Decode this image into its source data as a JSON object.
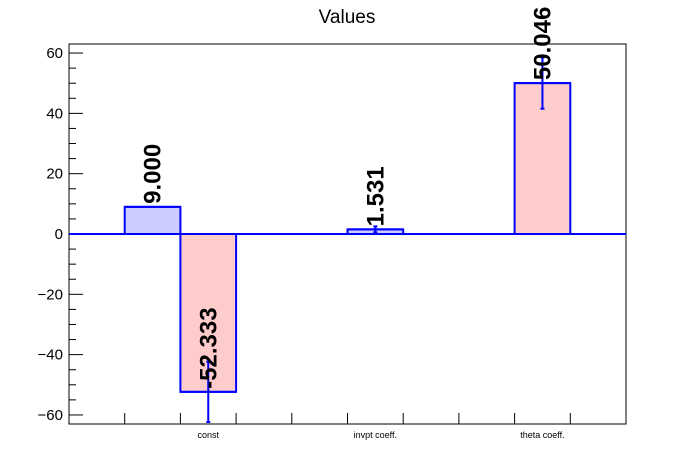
{
  "chart_data": {
    "type": "bar",
    "title": "Values",
    "xlabel": "",
    "ylabel": "",
    "ylim": [
      -63,
      63
    ],
    "yticks": [
      -60,
      -40,
      -20,
      0,
      20,
      40,
      60
    ],
    "categories": [
      "const",
      "invpt coeff.",
      "theta coeff."
    ],
    "grid": false,
    "legend": "none",
    "colors": {
      "bar_blue_fill": "#ccccff",
      "bar_red_fill": "#ffcccc",
      "bar_stroke": "#0000ff",
      "error_bar": "#0000ff",
      "zero_line": "#0000ff"
    },
    "bars": [
      {
        "category": "const",
        "value": 9.0,
        "label": "9.000",
        "error": 0,
        "fill": "blue"
      },
      {
        "category": "const",
        "value": -52.333,
        "label": "-52.333",
        "error": 10,
        "fill": "red"
      },
      {
        "category": "invpt coeff.",
        "value": 1.531,
        "label": "1.531",
        "error": 1.0,
        "fill": "blue"
      },
      {
        "category": "theta coeff.",
        "value": 50.046,
        "label": "50.046",
        "error": 8.5,
        "fill": "red"
      }
    ]
  }
}
